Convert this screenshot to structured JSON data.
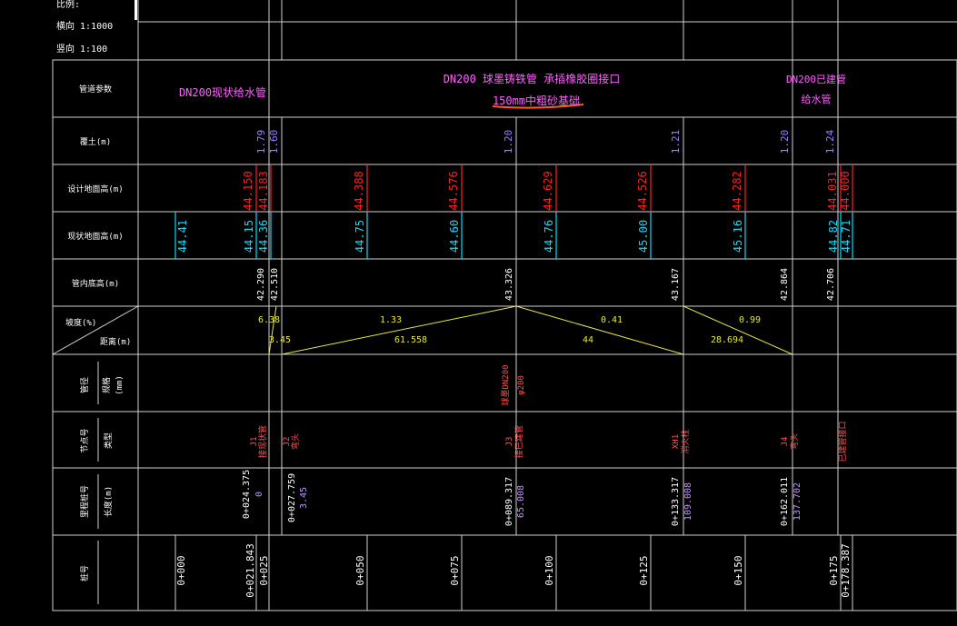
{
  "scale": {
    "title": "比例:",
    "horizontal": "横向 1:1000",
    "vertical": "竖向 1:100"
  },
  "rows": {
    "pipe_material": "管道参数",
    "cover": "覆土(m)",
    "design_ground": "设计地面高(m)",
    "existing_ground": "现状地面高(m)",
    "pipe_invert": "管内底高(m)",
    "slope": "坡度(%)",
    "distance": "距离(m)",
    "pipe_size_a": "管径",
    "pipe_size_b": "规格",
    "pipe_size_c": "(mm)",
    "node_a": "节点号",
    "node_b": "类型",
    "station_a": "里程桩号",
    "station_b": "长度(m)",
    "chainage": "桩号"
  },
  "segments": {
    "left": "DN200现状给水管",
    "main": "DN200 球墨铸铁管 承插橡胶圈接口",
    "bedding": "150mm中粗砂基础",
    "right_a": "DN200已建管",
    "right_b": "给水管"
  },
  "cover_values": [
    "1.79",
    "1.60",
    "1.20",
    "1.21",
    "1.20",
    "1.24"
  ],
  "design_ground_values": [
    "44.150",
    "44.183",
    "44.388",
    "44.576",
    "44.629",
    "44.526",
    "44.282",
    "44.031",
    "44.000"
  ],
  "existing_ground_values": [
    "44.41",
    "44.15",
    "44.36",
    "44.75",
    "44.60",
    "44.76",
    "45.00",
    "45.16",
    "44.82",
    "44.71"
  ],
  "invert_values": [
    "42.290",
    "42.510",
    "43.326",
    "43.167",
    "42.864",
    "42.706"
  ],
  "slope_segments": [
    {
      "slope": "6.38",
      "dist": "3.45"
    },
    {
      "slope": "1.33",
      "dist": "61.558"
    },
    {
      "slope": "0.41",
      "dist": "44"
    },
    {
      "slope": "0.99",
      "dist": "28.694"
    }
  ],
  "pipe_size_mark": "球墨DN200",
  "pipe_size_sub": "φ200",
  "nodes": [
    {
      "id": "J1",
      "type": "接现状管"
    },
    {
      "id": "J2",
      "type": "弯头"
    },
    {
      "id": "J3",
      "type": "接已建管"
    },
    {
      "id": "XH1",
      "type": "消火栓"
    },
    {
      "id": "J4",
      "type": "弯头"
    },
    {
      "id": "",
      "type": "已建管接口"
    }
  ],
  "stations": [
    {
      "st": "0+024.375",
      "len": "0"
    },
    {
      "st": "0+027.759",
      "len": "3.45"
    },
    {
      "st": "0+089.317",
      "len": "65.008"
    },
    {
      "st": "0+133.317",
      "len": "109.008"
    },
    {
      "st": "0+162.011",
      "len": "137.702"
    }
  ],
  "chainages": [
    "0+000",
    "0+021.843",
    "0+025",
    "0+050",
    "0+075",
    "0+100",
    "0+125",
    "0+150",
    "0+175",
    "0+178.387"
  ],
  "colors": {
    "grid": "#d8d8d8",
    "magenta": "#ff60ff",
    "red": "#ff2020",
    "cyan": "#00e0ff",
    "yellow": "#ffff40",
    "violet": "#a080ff",
    "orange": "#ff6000"
  }
}
